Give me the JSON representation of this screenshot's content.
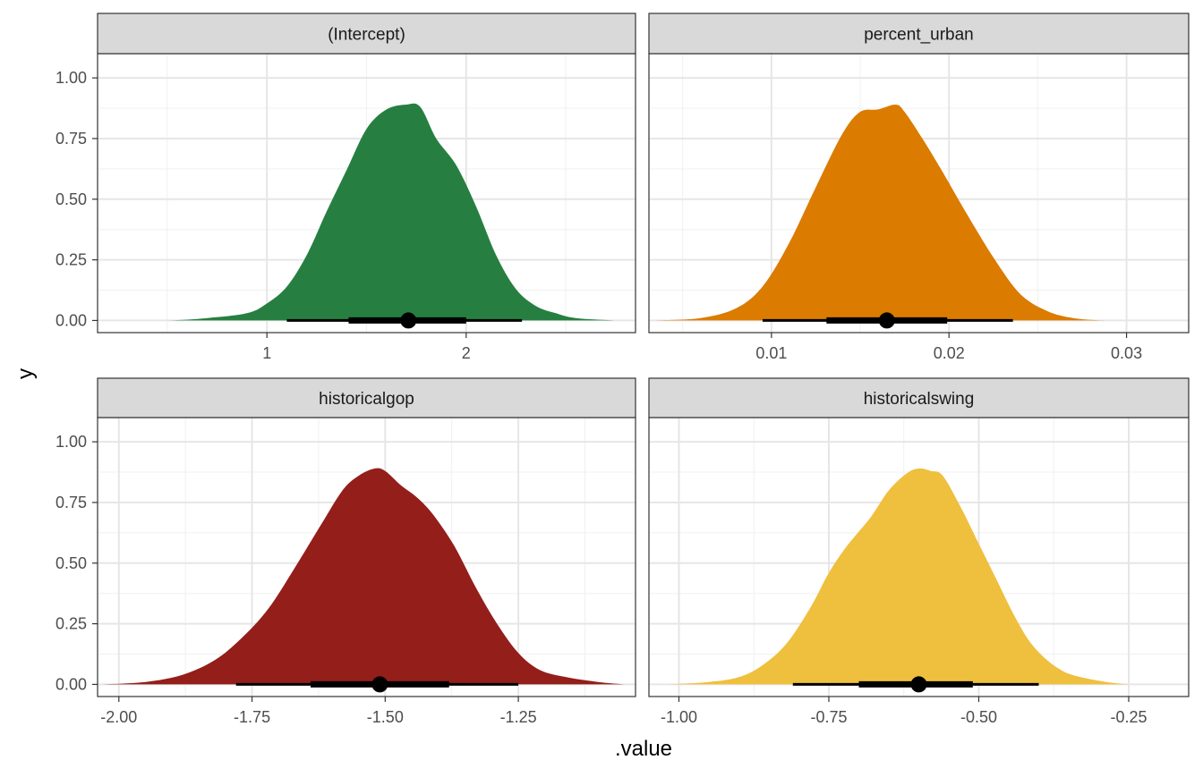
{
  "chart_data": {
    "type": "area",
    "chart_kind": "faceted half-eye density plot with point and interval",
    "xlabel": ".value",
    "ylabel": "y",
    "y_ticks": [
      "0.00",
      "0.25",
      "0.50",
      "0.75",
      "1.00"
    ],
    "y_tick_values": [
      0,
      0.25,
      0.5,
      0.75,
      1
    ],
    "ylim": [
      -0.05,
      1.1
    ],
    "grid": true,
    "legend": "none",
    "point_color": "#000000",
    "strip_fill": "#d9d9d9",
    "facets": [
      {
        "title": "(Intercept)",
        "color": "#267F41",
        "xlim": [
          0.15,
          2.85
        ],
        "x_ticks": [
          "1",
          "2"
        ],
        "x_tick_values": [
          1,
          2
        ],
        "x_minor": [
          0.5,
          1.5,
          2.5
        ],
        "point": 1.71,
        "interval_66": [
          1.41,
          2.0
        ],
        "interval_95": [
          1.1,
          2.28
        ],
        "density": {
          "x": [
            0.25,
            0.5,
            0.7,
            0.9,
            1.0,
            1.1,
            1.2,
            1.3,
            1.4,
            1.5,
            1.6,
            1.7,
            1.77,
            1.85,
            1.95,
            2.05,
            2.15,
            2.25,
            2.35,
            2.45,
            2.55,
            2.75
          ],
          "y": [
            0.0,
            0.0,
            0.01,
            0.03,
            0.07,
            0.14,
            0.27,
            0.45,
            0.62,
            0.79,
            0.87,
            0.89,
            0.88,
            0.75,
            0.64,
            0.47,
            0.27,
            0.13,
            0.06,
            0.03,
            0.01,
            0.0
          ]
        }
      },
      {
        "title": "percent_urban",
        "color": "#DB7B00",
        "xlim": [
          0.0031,
          0.0335
        ],
        "x_ticks": [
          "0.01",
          "0.02",
          "0.03"
        ],
        "x_tick_values": [
          0.01,
          0.02,
          0.03
        ],
        "x_minor": [
          0.005,
          0.015,
          0.025
        ],
        "point": 0.0165,
        "interval_66": [
          0.0131,
          0.0199
        ],
        "interval_95": [
          0.0095,
          0.0236
        ],
        "density": {
          "x": [
            0.0035,
            0.006,
            0.008,
            0.0095,
            0.011,
            0.0125,
            0.014,
            0.015,
            0.016,
            0.017,
            0.0175,
            0.0185,
            0.0195,
            0.021,
            0.0225,
            0.024,
            0.0255,
            0.027,
            0.029,
            0.0325
          ],
          "y": [
            0.0,
            0.01,
            0.05,
            0.14,
            0.32,
            0.55,
            0.77,
            0.86,
            0.87,
            0.89,
            0.86,
            0.75,
            0.63,
            0.44,
            0.26,
            0.11,
            0.04,
            0.01,
            0.0,
            0.0
          ]
        }
      },
      {
        "title": "historicalgop",
        "color": "#931E1A",
        "xlim": [
          -2.04,
          -1.03
        ],
        "x_ticks": [
          "-2.00",
          "-1.75",
          "-1.50",
          "-1.25"
        ],
        "x_tick_values": [
          -2.0,
          -1.75,
          -1.5,
          -1.25
        ],
        "x_minor": [
          -1.875,
          -1.625,
          -1.375,
          -1.125
        ],
        "point": -1.51,
        "interval_66": [
          -1.64,
          -1.38
        ],
        "interval_95": [
          -1.78,
          -1.25
        ],
        "density": {
          "x": [
            -2.03,
            -1.95,
            -1.88,
            -1.82,
            -1.77,
            -1.72,
            -1.67,
            -1.62,
            -1.58,
            -1.55,
            -1.52,
            -1.5,
            -1.47,
            -1.44,
            -1.41,
            -1.37,
            -1.33,
            -1.29,
            -1.25,
            -1.21,
            -1.16,
            -1.1,
            -1.05
          ],
          "y": [
            0.0,
            0.01,
            0.04,
            0.1,
            0.19,
            0.31,
            0.48,
            0.66,
            0.8,
            0.86,
            0.89,
            0.88,
            0.82,
            0.77,
            0.7,
            0.57,
            0.4,
            0.25,
            0.13,
            0.06,
            0.03,
            0.01,
            0.0
          ]
        }
      },
      {
        "title": "historicalswing",
        "color": "#EFBF3E",
        "xlim": [
          -1.05,
          -0.15
        ],
        "x_ticks": [
          "-1.00",
          "-0.75",
          "-0.50",
          "-0.25"
        ],
        "x_tick_values": [
          -1.0,
          -0.75,
          -0.5,
          -0.25
        ],
        "x_minor": [
          -0.875,
          -0.625,
          -0.375
        ],
        "point": -0.6,
        "interval_66": [
          -0.7,
          -0.51
        ],
        "interval_95": [
          -0.81,
          -0.4
        ],
        "density": {
          "x": [
            -1.02,
            -0.95,
            -0.9,
            -0.86,
            -0.82,
            -0.78,
            -0.75,
            -0.72,
            -0.68,
            -0.65,
            -0.62,
            -0.6,
            -0.58,
            -0.56,
            -0.53,
            -0.5,
            -0.47,
            -0.44,
            -0.41,
            -0.37,
            -0.33,
            -0.25,
            -0.15
          ],
          "y": [
            0.0,
            0.01,
            0.03,
            0.08,
            0.17,
            0.32,
            0.46,
            0.57,
            0.69,
            0.8,
            0.87,
            0.89,
            0.88,
            0.86,
            0.73,
            0.58,
            0.43,
            0.28,
            0.16,
            0.07,
            0.03,
            0.0,
            0.0
          ]
        }
      }
    ]
  }
}
